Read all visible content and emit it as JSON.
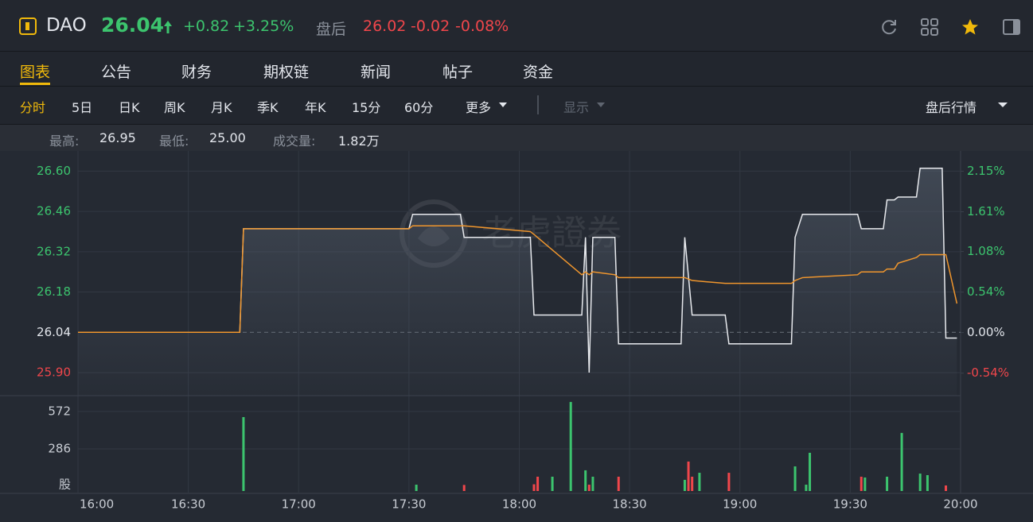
{
  "header": {
    "symbol": "DAO",
    "price": "26.04",
    "change": "+0.82",
    "change_pct": "+3.25%",
    "after_hours_label": "盘后",
    "after_price": "26.02",
    "after_change": "-0.02",
    "after_change_pct": "-0.08%"
  },
  "tabs": [
    "图表",
    "公告",
    "财务",
    "期权链",
    "新闻",
    "帖子",
    "资金"
  ],
  "active_tab": 0,
  "periods": [
    "分时",
    "5日",
    "日K",
    "周K",
    "月K",
    "季K",
    "年K",
    "15分",
    "60分"
  ],
  "active_period": 0,
  "more": "更多",
  "display": "显示",
  "after_hours_menu": "盘后行情",
  "stats": [
    {
      "label": "最高:",
      "value": "26.95"
    },
    {
      "label": "最低:",
      "value": "25.00"
    },
    {
      "label": "成交量:",
      "value": "1.82万"
    }
  ],
  "chart_data": {
    "type": "line",
    "x": [
      "16:00",
      "16:44",
      "16:45",
      "17:30",
      "17:31",
      "17:44",
      "17:45",
      "18:03",
      "18:04",
      "18:17",
      "18:18",
      "18:19",
      "18:20",
      "18:26",
      "18:27",
      "18:44",
      "18:45",
      "18:47",
      "18:56",
      "18:57",
      "19:14",
      "19:15",
      "19:17",
      "19:32",
      "19:33",
      "19:39",
      "19:40",
      "19:42",
      "19:43",
      "19:48",
      "19:49",
      "19:55",
      "19:56",
      "19:59"
    ],
    "series": [
      {
        "color": "#e8eaee",
        "values": [
          26.04,
          26.04,
          26.4,
          26.4,
          26.45,
          26.45,
          26.37,
          26.37,
          26.1,
          26.1,
          26.37,
          25.9,
          26.37,
          26.37,
          26.0,
          26.0,
          26.37,
          26.1,
          26.1,
          26.0,
          26.0,
          26.37,
          26.45,
          26.45,
          26.4,
          26.4,
          26.5,
          26.5,
          26.51,
          26.51,
          26.61,
          26.61,
          26.02,
          26.02
        ]
      },
      {
        "color": "#f0962d",
        "values": [
          26.04,
          26.04,
          26.4,
          26.4,
          26.41,
          26.41,
          26.41,
          26.39,
          26.38,
          26.24,
          26.25,
          26.24,
          26.25,
          26.24,
          26.23,
          26.23,
          26.23,
          26.22,
          26.21,
          26.21,
          26.21,
          26.22,
          26.23,
          26.24,
          26.25,
          26.25,
          26.26,
          26.26,
          26.28,
          26.3,
          26.31,
          26.31,
          26.31,
          26.14
        ]
      }
    ],
    "xlim": [
      "16:00",
      "20:00"
    ],
    "xticks": [
      "16:00",
      "16:30",
      "17:00",
      "17:30",
      "18:00",
      "18:30",
      "19:00",
      "19:30",
      "20:00"
    ],
    "ylim": [
      25.82,
      26.67
    ],
    "yticks": [
      {
        "value": 26.6,
        "label": "26.60"
      },
      {
        "value": 26.46,
        "label": "26.46"
      },
      {
        "value": 26.32,
        "label": "26.32"
      },
      {
        "value": 26.18,
        "label": "26.18"
      },
      {
        "value": 26.04,
        "label": "26.04"
      },
      {
        "value": 25.9,
        "label": "25.90"
      }
    ],
    "y2lim": [
      -0.84,
      2.42
    ],
    "y2ticks": [
      {
        "value": 2.15,
        "label": "2.15%"
      },
      {
        "value": 1.61,
        "label": "1.61%"
      },
      {
        "value": 1.08,
        "label": "1.08%"
      },
      {
        "value": 0.54,
        "label": "0.54%"
      },
      {
        "value": 0,
        "label": "0.00%"
      },
      {
        "value": -0.54,
        "label": "-0.54%"
      }
    ],
    "up_color": "#3cc46e",
    "down_color": "#f0464b",
    "flat_color": "#e3e6ec",
    "grid": true,
    "watermark": "老虎證券",
    "volume": {
      "x": [
        "16:45",
        "17:32",
        "17:45",
        "18:04",
        "18:05",
        "18:09",
        "18:14",
        "18:18",
        "18:19",
        "18:20",
        "18:27",
        "18:45",
        "18:46",
        "18:47",
        "18:49",
        "18:57",
        "19:15",
        "19:18",
        "19:19",
        "19:33",
        "19:34",
        "19:40",
        "19:44",
        "19:49",
        "19:51",
        "19:56"
      ],
      "values": [
        529,
        12,
        10,
        15,
        73,
        73,
        645,
        122,
        12,
        73,
        73,
        49,
        189,
        73,
        103,
        103,
        152,
        12,
        256,
        73,
        67,
        73,
        408,
        97,
        85,
        6
      ],
      "colors": [
        "#3cc46e",
        "#3cc46e",
        "#f0464b",
        "#f0464b",
        "#f0464b",
        "#3cc46e",
        "#3cc46e",
        "#3cc46e",
        "#f0464b",
        "#3cc46e",
        "#f0464b",
        "#3cc46e",
        "#f0464b",
        "#f0464b",
        "#3cc46e",
        "#f0464b",
        "#3cc46e",
        "#3cc46e",
        "#3cc46e",
        "#f0464b",
        "#3cc46e",
        "#3cc46e",
        "#3cc46e",
        "#3cc46e",
        "#3cc46e",
        "#f0464b"
      ],
      "ylim": [
        0,
        693
      ],
      "yticks": [
        572,
        286
      ],
      "unit": "股"
    }
  }
}
